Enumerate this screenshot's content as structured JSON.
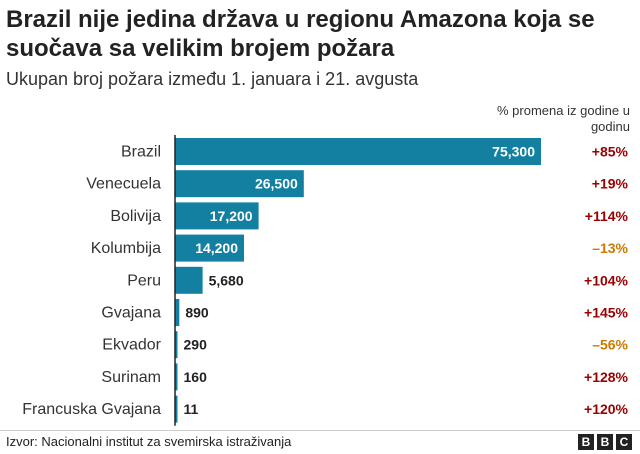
{
  "title": "Brazil nije jedina država u regionu Amazona koja se suočava sa velikim brojem požara",
  "subtitle": "Ukupan broj požara između 1. januara i 21. avgusta",
  "change_header": "% promena iz godine u godinu",
  "source": "Izvor: Nacionalni institut za svemirska istraživanja",
  "logo": [
    "B",
    "B",
    "C"
  ],
  "colors": {
    "bar": "#1380A1",
    "positive": "#990000",
    "negative": "#CC7A00"
  },
  "chart_data": {
    "type": "bar",
    "orientation": "horizontal",
    "title": "Brazil nije jedina država u regionu Amazona koja se suočava sa velikim brojem požara",
    "subtitle": "Ukupan broj požara između 1. januara i 21. avgusta",
    "xlim": [
      0,
      80000
    ],
    "categories": [
      "Brazil",
      "Venecuela",
      "Bolivija",
      "Kolumbija",
      "Peru",
      "Gvajana",
      "Ekvador",
      "Surinam",
      "Francuska Gvajana"
    ],
    "values": [
      75300,
      26500,
      17200,
      14200,
      5680,
      890,
      290,
      160,
      11
    ],
    "value_labels": [
      "75,300",
      "26,500",
      "17,200",
      "14,200",
      "5,680",
      "890",
      "290",
      "160",
      "11"
    ],
    "changes": [
      "+85%",
      "+19%",
      "+114%",
      "–13%",
      "+104%",
      "+145%",
      "–56%",
      "+128%",
      "+120%"
    ],
    "change_signs": [
      "pos",
      "pos",
      "pos",
      "neg",
      "pos",
      "pos",
      "neg",
      "pos",
      "pos"
    ]
  }
}
